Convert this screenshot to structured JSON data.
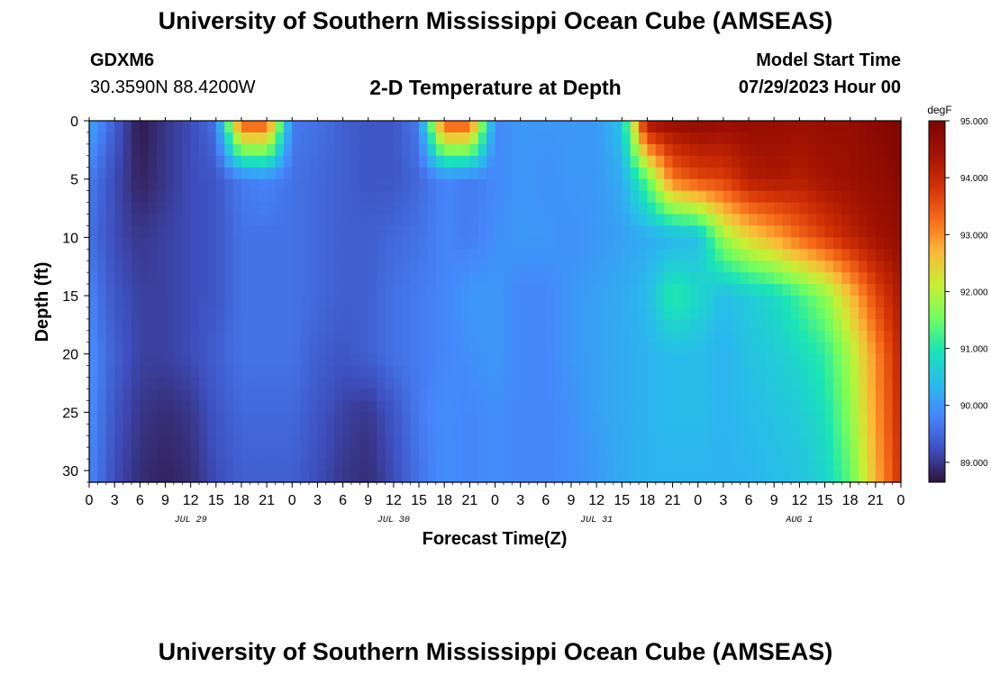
{
  "header": {
    "title": "University of Southern Mississippi Ocean Cube (AMSEAS)",
    "station": "GDXM6",
    "coords": "30.3590N  88.4200W",
    "subtitle": "2-D Temperature at Depth",
    "model_start_label": "Model Start Time",
    "model_start_value": "07/29/2023 Hour 00"
  },
  "footer": {
    "title": "University of Southern Mississippi Ocean Cube (AMSEAS)"
  },
  "chart_data": {
    "type": "heatmap",
    "xlabel": "Forecast Time(Z)",
    "ylabel": "Depth (ft)",
    "x_ticks": [
      "0",
      "3",
      "6",
      "9",
      "12",
      "15",
      "18",
      "21",
      "0",
      "3",
      "6",
      "9",
      "12",
      "15",
      "18",
      "21",
      "0",
      "3",
      "6",
      "9",
      "12",
      "15",
      "18",
      "21",
      "0",
      "3",
      "6",
      "9",
      "12",
      "15",
      "18",
      "21",
      "0"
    ],
    "day_labels": [
      "JUL 29",
      "JUL 30",
      "JUL 31",
      "AUG 1"
    ],
    "y_ticks": [
      "0",
      "5",
      "10",
      "15",
      "20",
      "25",
      "30"
    ],
    "ylim": [
      0,
      31
    ],
    "xlim_hours": [
      0,
      96
    ],
    "colorbar": {
      "unit": "degF",
      "ticks": [
        "95.000",
        "94.000",
        "93.000",
        "92.000",
        "91.000",
        "90.000",
        "89.000"
      ],
      "range": [
        88.65,
        95.0
      ]
    },
    "colors": {
      "scale": [
        "#30123b",
        "#3e4fbe",
        "#4686fb",
        "#29bbec",
        "#1ae4b6",
        "#72fe5e",
        "#c8ef34",
        "#fbb938",
        "#f66b19",
        "#d23105",
        "#a11201",
        "#7a0403"
      ]
    },
    "depths_ft": [
      0,
      5,
      10,
      15,
      20,
      25,
      31
    ],
    "hours": [
      0,
      3,
      6,
      9,
      12,
      15,
      18,
      21,
      24,
      27,
      30,
      33,
      36,
      39,
      42,
      45,
      48,
      51,
      54,
      57,
      60,
      63,
      66,
      69,
      72,
      75,
      78,
      81,
      84,
      87,
      90,
      93,
      96
    ],
    "temperature_degF": [
      [
        90.2,
        89.4,
        88.7,
        89.0,
        89.2,
        89.6,
        93.6,
        93.6,
        89.7,
        89.6,
        89.4,
        89.3,
        89.3,
        89.7,
        93.6,
        93.6,
        89.8,
        90.0,
        90.0,
        90.0,
        90.0,
        90.5,
        94.5,
        94.6,
        94.7,
        94.6,
        94.6,
        94.6,
        94.5,
        94.6,
        94.6,
        94.8,
        94.9
      ],
      [
        89.7,
        89.2,
        88.8,
        89.0,
        89.2,
        89.3,
        89.7,
        89.8,
        89.6,
        89.5,
        89.4,
        89.3,
        89.3,
        89.5,
        89.8,
        89.7,
        89.8,
        90.0,
        89.9,
        90.0,
        90.0,
        90.2,
        91.4,
        93.2,
        93.6,
        93.7,
        94.2,
        94.3,
        94.2,
        94.4,
        94.5,
        94.6,
        94.8
      ],
      [
        89.6,
        89.2,
        89.0,
        89.1,
        89.2,
        89.3,
        89.6,
        89.6,
        89.6,
        89.5,
        89.4,
        89.4,
        89.5,
        89.6,
        89.8,
        89.7,
        89.9,
        90.0,
        90.0,
        89.9,
        90.0,
        90.1,
        90.2,
        90.3,
        90.4,
        91.8,
        92.4,
        92.8,
        93.3,
        93.7,
        94.1,
        94.4,
        94.6
      ],
      [
        89.8,
        89.3,
        89.1,
        89.1,
        89.2,
        89.3,
        89.6,
        89.6,
        89.6,
        89.5,
        89.4,
        89.4,
        89.6,
        89.7,
        89.8,
        90.0,
        90.0,
        89.8,
        89.8,
        90.0,
        90.1,
        90.2,
        90.4,
        91.1,
        90.8,
        90.4,
        90.6,
        90.8,
        91.2,
        91.7,
        92.6,
        93.6,
        94.3
      ],
      [
        89.9,
        89.4,
        89.1,
        89.1,
        89.2,
        89.4,
        89.6,
        89.6,
        89.6,
        89.4,
        89.3,
        89.4,
        89.6,
        89.7,
        89.8,
        89.9,
        90.0,
        89.8,
        89.8,
        90.0,
        90.1,
        90.2,
        90.3,
        90.4,
        90.4,
        90.3,
        90.5,
        90.6,
        90.8,
        91.1,
        91.9,
        93.0,
        94.1
      ],
      [
        89.9,
        89.3,
        89.0,
        88.9,
        89.0,
        89.3,
        89.5,
        89.5,
        89.5,
        89.3,
        89.1,
        89.0,
        89.3,
        89.7,
        89.9,
        89.8,
        89.9,
        89.8,
        89.8,
        89.9,
        90.1,
        90.2,
        90.3,
        90.4,
        90.4,
        90.3,
        90.4,
        90.5,
        90.6,
        90.9,
        91.7,
        92.9,
        94.0
      ],
      [
        89.8,
        89.2,
        88.9,
        88.8,
        88.9,
        89.2,
        89.4,
        89.4,
        89.4,
        89.2,
        89.0,
        88.9,
        89.2,
        89.6,
        89.9,
        89.8,
        89.9,
        89.8,
        89.8,
        89.9,
        90.0,
        90.2,
        90.3,
        90.3,
        90.3,
        90.3,
        90.3,
        90.4,
        90.5,
        90.7,
        91.4,
        92.7,
        93.9
      ]
    ]
  }
}
